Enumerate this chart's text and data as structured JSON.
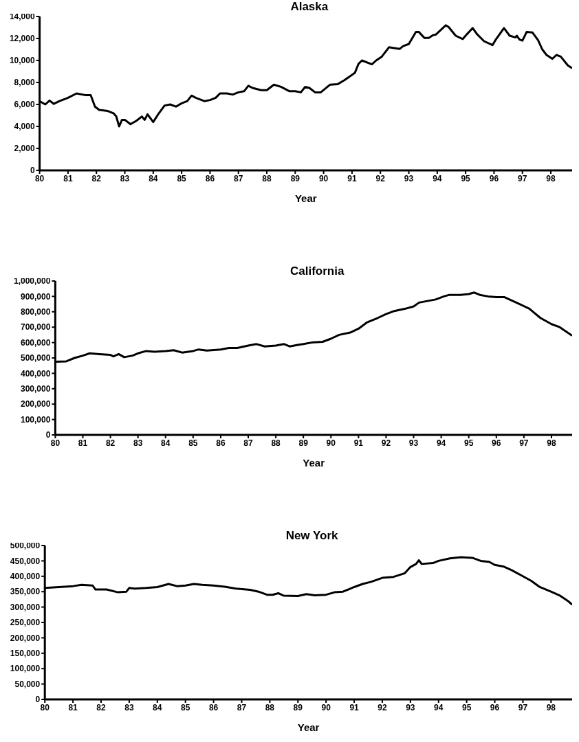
{
  "chart_data": [
    {
      "type": "line",
      "title": "Alaska",
      "xlabel": "Year",
      "color": "#000000",
      "xlim": [
        80,
        98.75
      ],
      "xticks": [
        80,
        81,
        82,
        83,
        84,
        85,
        86,
        87,
        88,
        89,
        90,
        91,
        92,
        93,
        94,
        95,
        96,
        97,
        98
      ],
      "ylim": [
        0,
        14000
      ],
      "yticks": [
        {
          "value": 0,
          "label": "0"
        },
        {
          "value": 2000,
          "label": "2,000"
        },
        {
          "value": 4000,
          "label": "4,000"
        },
        {
          "value": 6000,
          "label": "6,000"
        },
        {
          "value": 8000,
          "label": "8,000"
        },
        {
          "value": 10000,
          "label": "10,000"
        },
        {
          "value": 12000,
          "label": "12,000"
        },
        {
          "value": 14000,
          "label": "14,000"
        }
      ],
      "grid": false,
      "x": [
        80,
        80.2,
        80.35,
        80.5,
        80.7,
        81,
        81.3,
        81.6,
        81.8,
        81.95,
        82.1,
        82.4,
        82.6,
        82.7,
        82.8,
        82.9,
        83,
        83.2,
        83.4,
        83.6,
        83.7,
        83.8,
        84,
        84.2,
        84.4,
        84.6,
        84.8,
        85,
        85.2,
        85.35,
        85.5,
        85.8,
        86,
        86.2,
        86.35,
        86.6,
        86.8,
        87,
        87.2,
        87.35,
        87.5,
        87.8,
        88,
        88.25,
        88.5,
        88.8,
        89,
        89.2,
        89.35,
        89.5,
        89.7,
        89.9,
        90.23,
        90.5,
        90.73,
        91.1,
        91.23,
        91.35,
        91.7,
        91.85,
        92.05,
        92.3,
        92.68,
        92.8,
        93,
        93.25,
        93.35,
        93.55,
        93.7,
        93.85,
        93.95,
        94.3,
        94.4,
        94.65,
        94.9,
        95.05,
        95.25,
        95.4,
        95.65,
        95.95,
        96.05,
        96.35,
        96.55,
        96.75,
        96.8,
        96.9,
        97,
        97.15,
        97.35,
        97.55,
        97.7,
        97.85,
        98.05,
        98.2,
        98.35,
        98.6,
        98.75
      ],
      "values": [
        6300,
        6000,
        6350,
        6050,
        6300,
        6600,
        7000,
        6850,
        6850,
        5800,
        5500,
        5400,
        5200,
        4900,
        4000,
        4600,
        4600,
        4200,
        4500,
        4900,
        4600,
        5100,
        4400,
        5200,
        5900,
        6000,
        5800,
        6100,
        6300,
        6800,
        6600,
        6300,
        6400,
        6600,
        7000,
        7000,
        6900,
        7100,
        7200,
        7700,
        7500,
        7300,
        7300,
        7800,
        7600,
        7200,
        7200,
        7100,
        7600,
        7500,
        7100,
        7100,
        7800,
        7850,
        8200,
        8870,
        9700,
        10000,
        9650,
        10000,
        10350,
        11200,
        11050,
        11300,
        11500,
        12600,
        12600,
        12050,
        12050,
        12300,
        12350,
        13200,
        13050,
        12250,
        11950,
        12400,
        12950,
        12400,
        11750,
        11400,
        11850,
        12950,
        12250,
        12100,
        12250,
        11900,
        11800,
        12600,
        12550,
        11850,
        11000,
        10500,
        10150,
        10500,
        10350,
        9550,
        9300
      ]
    },
    {
      "type": "line",
      "title": "California",
      "xlabel": "Year",
      "color": "#000000",
      "xlim": [
        80,
        98.75
      ],
      "xticks": [
        80,
        81,
        82,
        83,
        84,
        85,
        86,
        87,
        88,
        89,
        90,
        91,
        92,
        93,
        94,
        95,
        96,
        97,
        98
      ],
      "ylim": [
        0,
        1000000
      ],
      "yticks": [
        {
          "value": 0,
          "label": "0"
        },
        {
          "value": 100000,
          "label": "100,000"
        },
        {
          "value": 200000,
          "label": "200,000"
        },
        {
          "value": 300000,
          "label": "300,000"
        },
        {
          "value": 400000,
          "label": "400,000"
        },
        {
          "value": 500000,
          "label": "500,000"
        },
        {
          "value": 600000,
          "label": "600,000"
        },
        {
          "value": 700000,
          "label": "700,000"
        },
        {
          "value": 800000,
          "label": "800,000"
        },
        {
          "value": 900000,
          "label": "900,000"
        },
        {
          "value": 1000000,
          "label": "1,000,000"
        }
      ],
      "grid": false,
      "x": [
        80,
        80.4,
        80.7,
        81,
        81.25,
        81.6,
        82,
        82.1,
        82.3,
        82.5,
        82.8,
        83,
        83.3,
        83.6,
        84,
        84.3,
        84.6,
        85,
        85.2,
        85.5,
        86,
        86.3,
        86.6,
        87,
        87.3,
        87.6,
        88,
        88.3,
        88.5,
        88.8,
        89,
        89.3,
        89.7,
        90,
        90.3,
        90.7,
        91,
        91.3,
        91.7,
        92,
        92.3,
        92.7,
        93,
        93.2,
        93.5,
        93.8,
        94.1,
        94.3,
        94.7,
        95,
        95.2,
        95.4,
        95.7,
        96,
        96.3,
        96.6,
        96.9,
        97.2,
        97.4,
        97.6,
        98,
        98.3,
        98.5,
        98.75
      ],
      "values": [
        475000,
        478000,
        500000,
        515000,
        530000,
        525000,
        520000,
        510000,
        525000,
        505000,
        515000,
        530000,
        545000,
        540000,
        545000,
        550000,
        535000,
        545000,
        555000,
        548000,
        555000,
        565000,
        565000,
        580000,
        590000,
        575000,
        580000,
        590000,
        575000,
        585000,
        590000,
        600000,
        605000,
        625000,
        650000,
        665000,
        690000,
        730000,
        760000,
        785000,
        805000,
        820000,
        835000,
        860000,
        870000,
        880000,
        900000,
        910000,
        910000,
        915000,
        925000,
        910000,
        900000,
        895000,
        895000,
        870000,
        845000,
        820000,
        790000,
        760000,
        720000,
        700000,
        675000,
        645000
      ]
    },
    {
      "type": "line",
      "title": "New York",
      "xlabel": "Year",
      "color": "#000000",
      "xlim": [
        80,
        98.75
      ],
      "xticks": [
        80,
        81,
        82,
        83,
        84,
        85,
        86,
        87,
        88,
        89,
        90,
        91,
        92,
        93,
        94,
        95,
        96,
        97,
        98
      ],
      "ylim": [
        0,
        500000
      ],
      "yticks": [
        {
          "value": 0,
          "label": "0"
        },
        {
          "value": 50000,
          "label": "50,000"
        },
        {
          "value": 100000,
          "label": "100,000"
        },
        {
          "value": 150000,
          "label": "150,000"
        },
        {
          "value": 200000,
          "label": "200,000"
        },
        {
          "value": 250000,
          "label": "250,000"
        },
        {
          "value": 300000,
          "label": "300,000"
        },
        {
          "value": 350000,
          "label": "350,000"
        },
        {
          "value": 400000,
          "label": "400,000"
        },
        {
          "value": 450000,
          "label": "450,000"
        },
        {
          "value": 500000,
          "label": "500,000"
        }
      ],
      "grid": false,
      "x": [
        80,
        80.5,
        81,
        81.3,
        81.7,
        81.8,
        82.2,
        82.6,
        82.9,
        83,
        83.2,
        83.6,
        84,
        84.4,
        84.7,
        85,
        85.3,
        85.6,
        86,
        86.4,
        86.8,
        87.3,
        87.6,
        87.9,
        88.1,
        88.3,
        88.5,
        89,
        89.3,
        89.6,
        90,
        90.3,
        90.6,
        91,
        91.3,
        91.6,
        92,
        92.4,
        92.8,
        93,
        93.2,
        93.3,
        93.4,
        93.8,
        94,
        94.4,
        94.8,
        95.2,
        95.5,
        95.8,
        96,
        96.3,
        96.6,
        97,
        97.3,
        97.6,
        98,
        98.3,
        98.6,
        98.75
      ],
      "values": [
        362000,
        365000,
        368000,
        372000,
        370000,
        357000,
        357000,
        348000,
        350000,
        362000,
        360000,
        362000,
        365000,
        375000,
        368000,
        370000,
        375000,
        372000,
        370000,
        366000,
        360000,
        356000,
        350000,
        340000,
        340000,
        345000,
        337000,
        336000,
        342000,
        338000,
        340000,
        348000,
        350000,
        365000,
        375000,
        382000,
        395000,
        398000,
        410000,
        430000,
        440000,
        452000,
        440000,
        443000,
        450000,
        458000,
        462000,
        460000,
        450000,
        447000,
        437000,
        432000,
        420000,
        400000,
        385000,
        365000,
        350000,
        338000,
        320000,
        308000
      ]
    }
  ]
}
